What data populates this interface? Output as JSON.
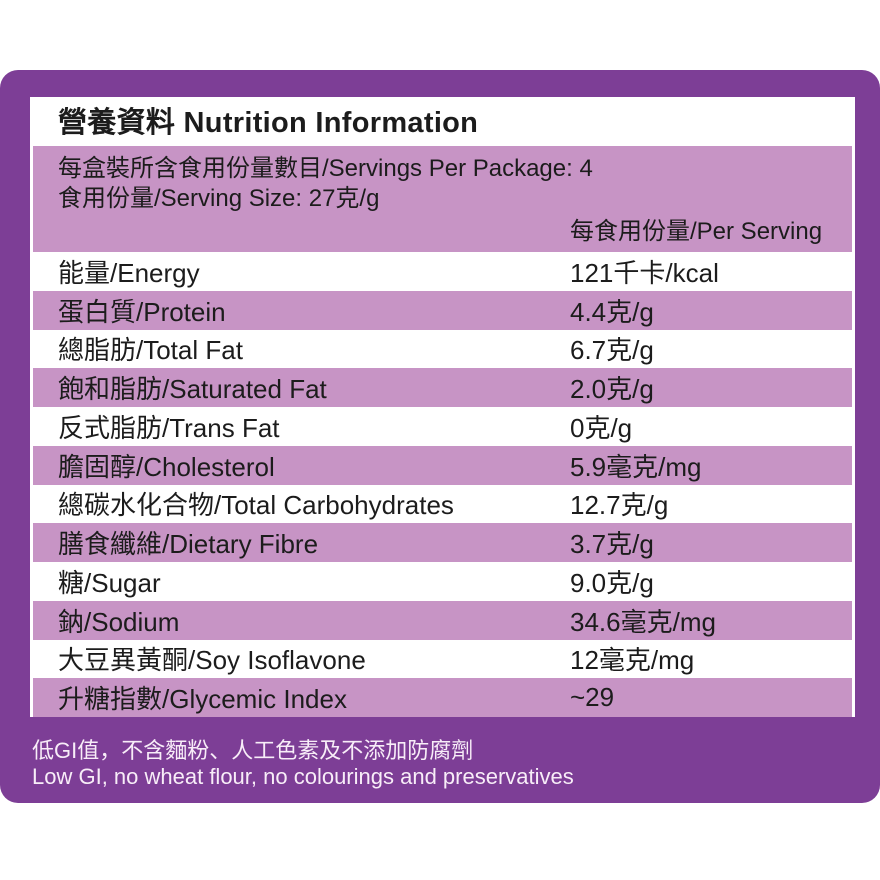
{
  "title": "營養資料 Nutrition Information",
  "serving_info": {
    "servings_per_package": "每盒裝所含食用份量數目/Servings Per Package: 4",
    "serving_size": "食用份量/Serving Size: 27克/g",
    "column_header": "每食用份量/Per Serving"
  },
  "table": {
    "rows": [
      {
        "label": "能量/Energy",
        "value": "121千卡/kcal"
      },
      {
        "label": "蛋白質/Protein",
        "value": "4.4克/g"
      },
      {
        "label": "總脂肪/Total Fat",
        "value": "6.7克/g"
      },
      {
        "label": "飽和脂肪/Saturated Fat",
        "value": "2.0克/g"
      },
      {
        "label": "反式脂肪/Trans Fat",
        "value": "0克/g"
      },
      {
        "label": "膽固醇/Cholesterol",
        "value": "5.9毫克/mg"
      },
      {
        "label": "總碳水化合物/Total Carbohydrates",
        "value": "12.7克/g"
      },
      {
        "label": "膳食纖維/Dietary Fibre",
        "value": "3.7克/g"
      },
      {
        "label": "糖/Sugar",
        "value": "9.0克/g"
      },
      {
        "label": "鈉/Sodium",
        "value": "34.6毫克/mg"
      },
      {
        "label": "大豆異黃酮/Soy Isoflavone",
        "value": "12毫克/mg"
      },
      {
        "label": "升糖指數/Glycemic Index",
        "value": "~29"
      }
    ]
  },
  "footnote": {
    "zh": "低GI值，不含麵粉、人工色素及不添加防腐劑",
    "en": "Low GI, no wheat flour, no colourings and preservatives"
  },
  "colors": {
    "panel_purple": "#7d3e96",
    "row_mauve": "#c794c5",
    "text": "#1c1c1c",
    "footnote_text": "#f8edf8"
  }
}
